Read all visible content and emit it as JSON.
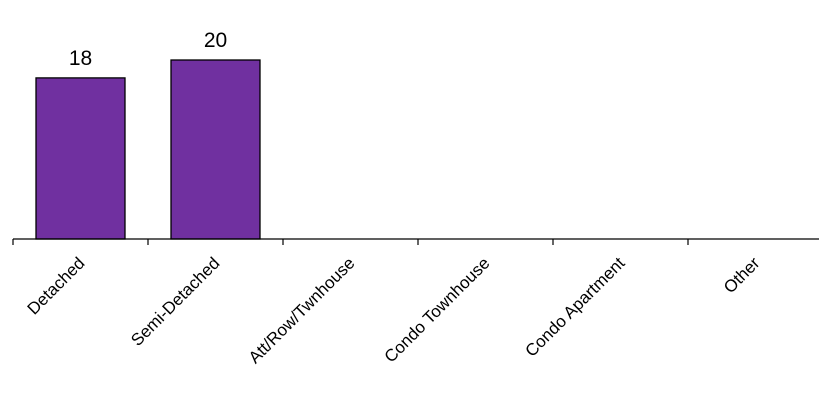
{
  "chart_data": {
    "type": "bar",
    "categories": [
      "Detached",
      "Semi-Detached",
      "Att/Row/Twnhouse",
      "Condo Townhouse",
      "Condo Apartment",
      "Other"
    ],
    "values": [
      18,
      20,
      null,
      null,
      null,
      null
    ],
    "data_labels": [
      "18",
      "20",
      "",
      "",
      "",
      ""
    ],
    "title": "",
    "xlabel": "",
    "ylabel": "",
    "ylim": [
      0,
      20
    ],
    "grid": false,
    "bar_color": "#7030a0",
    "tick_label_rotation_deg": -45
  }
}
